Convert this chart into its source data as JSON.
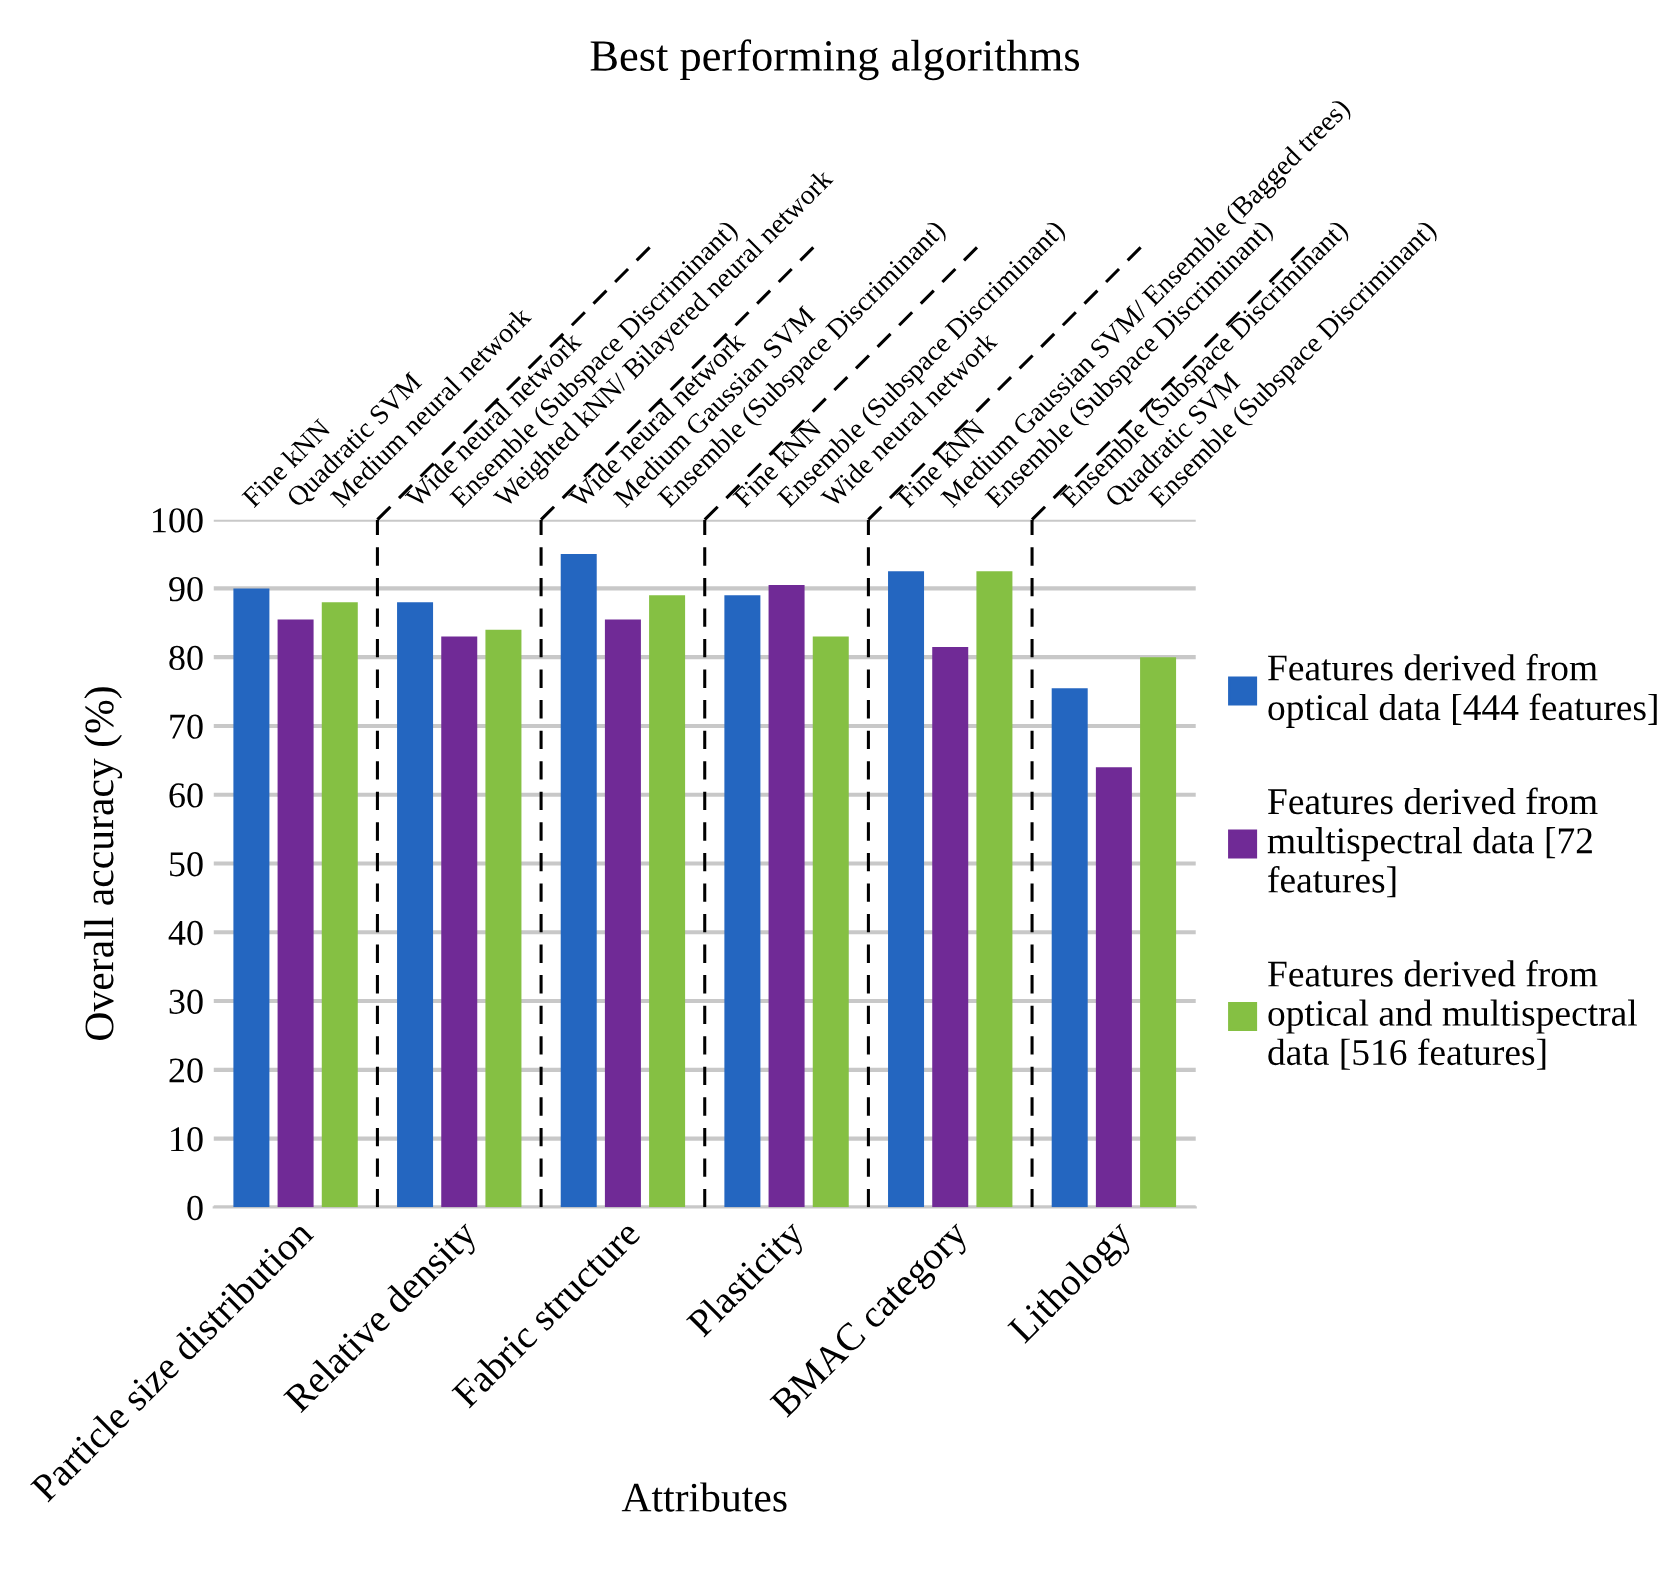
{
  "chart_data": {
    "type": "bar",
    "title": "Best performing algorithms",
    "xlabel": "Attributes",
    "ylabel": "Overall accuracy (%)",
    "categories": [
      "Particle size distribution",
      "Relative density",
      "Fabric structure",
      "Plasticity",
      "BMAC category",
      "Lithology"
    ],
    "series": [
      {
        "name": "Features derived from\noptical data [444 features]",
        "color": "#2466c0",
        "values": [
          90,
          88,
          95,
          89,
          92.5,
          75.5
        ]
      },
      {
        "name": "Features derived from\nmultispectral data [72\nfeatures]",
        "color": "#702a96",
        "values": [
          85.5,
          83,
          85.5,
          90.5,
          81.5,
          64
        ]
      },
      {
        "name": "Features derived from\noptical and multispectral\ndata [516 features]",
        "color": "#85c043",
        "values": [
          88,
          84,
          89,
          83,
          92.5,
          80
        ]
      }
    ],
    "annotations": [
      "Fine kNN",
      "Quadratic SVM",
      "Medium neural network",
      "Wide neural network",
      "Ensemble (Subspace Discriminant)",
      "Weighted kNN/ Bilayered neural network",
      "Wide neural network",
      "Medium Gaussian SVM",
      "Ensemble (Subspace Discriminant)",
      "Fine kNN",
      "Ensemble (Subspace Discriminant)",
      "Wide neural network",
      "Fine kNN",
      "Medium Gaussian SVM/ Ensemble (Bagged trees)",
      "Ensemble (Subspace Discriminant)",
      "Ensemble (Subspace Discriminant)",
      "Quadratic SVM",
      "Ensemble (Subspace Discriminant)"
    ],
    "ylim": [
      0,
      100
    ],
    "yticks": [
      0,
      10,
      20,
      30,
      40,
      50,
      60,
      70,
      80,
      90,
      100
    ],
    "grid": "y",
    "legend": "right"
  }
}
